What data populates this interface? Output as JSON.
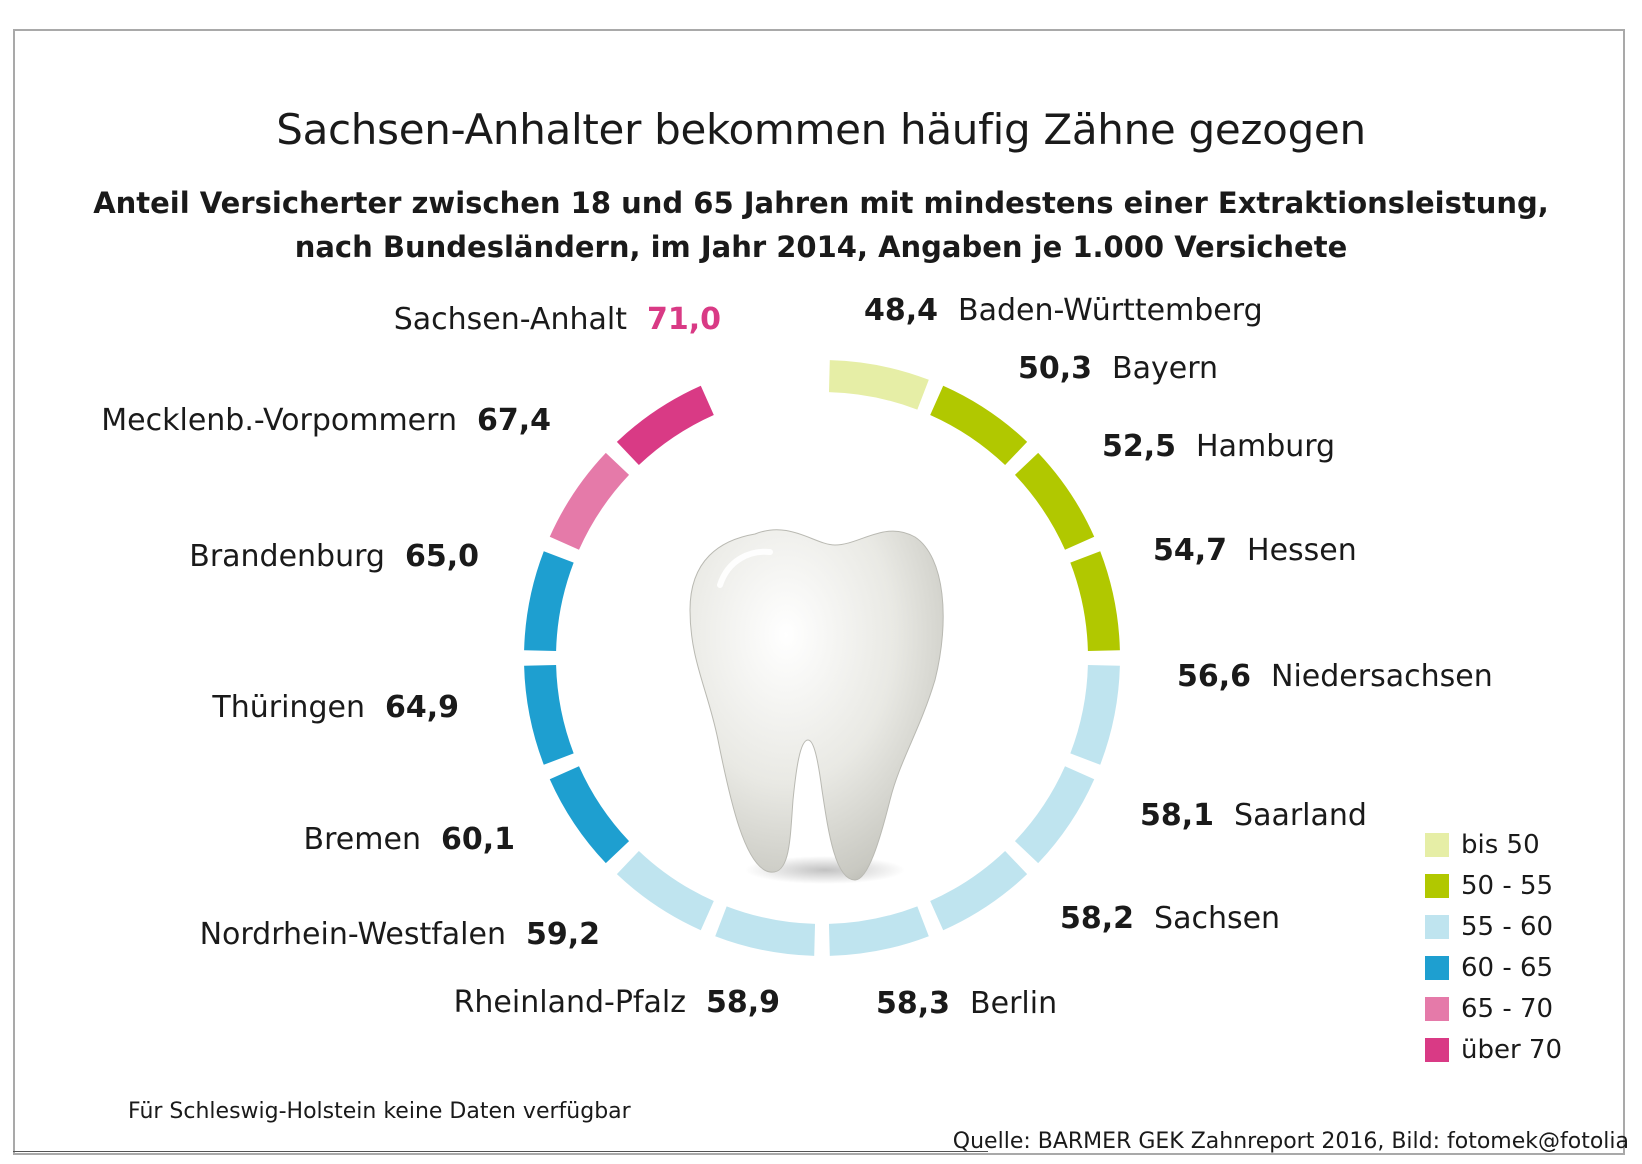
{
  "title": "Sachsen-Anhalter bekommen häufig Zähne gezogen",
  "subtitle_line1": "Anteil Versicherter zwischen 18 und 65 Jahren mit mindestens einer Extraktionsleistung,",
  "subtitle_line2": "nach Bundesländern, im Jahr 2014, Angaben je 1.000 Versichete",
  "note": "Für Schleswig-Holstein keine Daten verfügbar",
  "source": "Quelle: BARMER GEK Zahnreport 2016, Bild: fotomek@fotolia",
  "colors": {
    "bis 50": "#e6eea6",
    "50 - 55": "#b1c800",
    "55 - 60": "#bfe4ef",
    "60 - 65": "#1e9fd0",
    "65 - 70": "#e57aa9",
    "über 70": "#d93a85"
  },
  "legend": [
    {
      "label": "bis 50",
      "color": "#e6eea6"
    },
    {
      "label": "50 - 55",
      "color": "#b1c800"
    },
    {
      "label": "55 - 60",
      "color": "#bfe4ef"
    },
    {
      "label": "60 - 65",
      "color": "#1e9fd0"
    },
    {
      "label": "65 - 70",
      "color": "#e57aa9"
    },
    {
      "label": "über 70",
      "color": "#d93a85"
    }
  ],
  "chart_data": {
    "type": "pie",
    "title": "Sachsen-Anhalter bekommen häufig Zähne gezogen",
    "unit": "je 1.000 Versicherte",
    "center_image": "tooth",
    "categories": [
      "Baden-Württemberg",
      "Bayern",
      "Hamburg",
      "Hessen",
      "Niedersachsen",
      "Saarland",
      "Sachsen",
      "Berlin",
      "Rheinland-Pfalz",
      "Nordrhein-Westfalen",
      "Bremen",
      "Thüringen",
      "Brandenburg",
      "Mecklenb.-Vorpommern",
      "Sachsen-Anhalt"
    ],
    "values": [
      48.4,
      50.3,
      52.5,
      54.7,
      56.6,
      58.1,
      58.2,
      58.3,
      58.9,
      59.2,
      60.1,
      64.9,
      65.0,
      67.4,
      71.0
    ],
    "value_labels": [
      "48,4",
      "50,3",
      "52,5",
      "54,7",
      "56,6",
      "58,1",
      "58,2",
      "58,3",
      "58,9",
      "59,2",
      "60,1",
      "64,9",
      "65,0",
      "67,4",
      "71,0"
    ],
    "classes": [
      "bis 50",
      "50 - 55",
      "50 - 55",
      "50 - 55",
      "55 - 60",
      "55 - 60",
      "55 - 60",
      "55 - 60",
      "55 - 60",
      "55 - 60",
      "60 - 65",
      "60 - 65",
      "60 - 65",
      "65 - 70",
      "über 70"
    ],
    "legend_position": "bottom-right"
  }
}
